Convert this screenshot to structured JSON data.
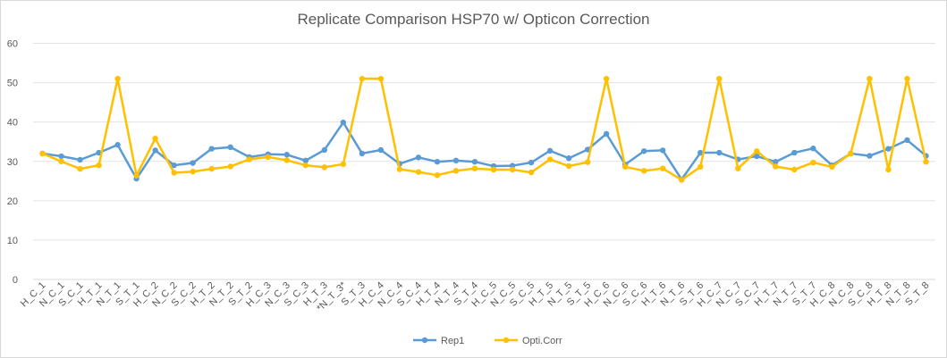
{
  "chart_data": {
    "type": "line",
    "title": "Replicate Comparison HSP70 w/ Opticon Correction",
    "xlabel": "",
    "ylabel": "",
    "ylim": [
      0,
      60
    ],
    "yticks": [
      0,
      10,
      20,
      30,
      40,
      50,
      60
    ],
    "grid": true,
    "legend_position": "bottom",
    "categories": [
      "H_C_1",
      "N_C_1",
      "S_C_1",
      "H_T_1",
      "N_T_1",
      "S_T_1",
      "H_C_2",
      "N_C_2",
      "S_C_2",
      "H_T_2",
      "N_T_2",
      "S_T_2",
      "H_C_3",
      "N_C_3",
      "S_C_3",
      "H_T_3",
      "*N_T_3*",
      "S_T_3",
      "H_C_4",
      "N_C_4",
      "S_C_4",
      "H_T_4",
      "N_T_4",
      "S_T_4",
      "H_C_5",
      "N_C_5",
      "S_C_5",
      "H_T_5",
      "N_T_5",
      "S_T_5",
      "H_C_6",
      "N_C_6",
      "S_C_6",
      "H_T_6",
      "N_T_6",
      "S_T_6",
      "H_C_7",
      "N_C_7",
      "S_C_7",
      "H_T_7",
      "N_T_7",
      "S_T_7",
      "H_C_8",
      "N_C_8",
      "S_C_8",
      "H_T_8",
      "N_T_8",
      "S_T_8"
    ],
    "series": [
      {
        "name": "Rep1",
        "color": "#5b9bd5",
        "values": [
          32.0,
          31.3,
          30.4,
          32.2,
          34.2,
          25.6,
          32.8,
          29.0,
          29.6,
          33.2,
          33.6,
          31.1,
          31.8,
          31.7,
          30.2,
          32.9,
          39.9,
          32.0,
          32.9,
          29.4,
          31.0,
          29.9,
          30.2,
          29.9,
          28.8,
          28.9,
          29.7,
          32.7,
          30.8,
          33.0,
          37.0,
          29.2,
          32.6,
          32.8,
          25.4,
          32.2,
          32.2,
          30.5,
          31.3,
          29.9,
          32.2,
          33.3,
          29.0,
          32.0,
          31.4,
          33.2,
          35.4,
          31.4
        ]
      },
      {
        "name": "Opti.Corr",
        "color": "#ffc000",
        "values": [
          32.0,
          30.0,
          28.1,
          29.0,
          51.0,
          26.4,
          35.8,
          27.1,
          27.4,
          28.1,
          28.7,
          30.5,
          31.1,
          30.3,
          29.0,
          28.5,
          29.3,
          51.0,
          51.0,
          28.0,
          27.3,
          26.5,
          27.6,
          28.2,
          27.9,
          27.9,
          27.2,
          30.5,
          28.8,
          29.8,
          51.0,
          28.6,
          27.6,
          28.2,
          25.3,
          28.6,
          51.0,
          28.2,
          32.6,
          28.7,
          27.9,
          29.7,
          28.6,
          32.0,
          51.0,
          27.9,
          51.0,
          29.9
        ]
      }
    ]
  }
}
